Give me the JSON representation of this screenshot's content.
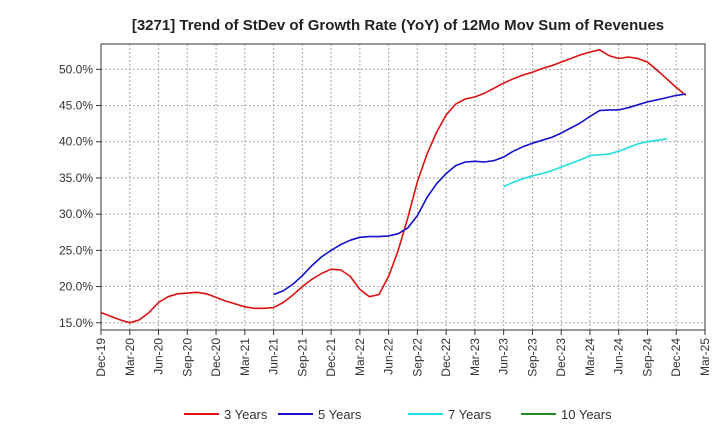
{
  "chart_data": {
    "type": "line",
    "title": "[3271]  Trend of StDev of Growth Rate (YoY) of 12Mo Mov Sum of Revenues",
    "xlabel": "",
    "ylabel": "",
    "ylim": [
      14.0,
      53.5
    ],
    "yticks": [
      15.0,
      20.0,
      25.0,
      30.0,
      35.0,
      40.0,
      45.0,
      50.0
    ],
    "ytick_labels": [
      "15.0%",
      "20.0%",
      "25.0%",
      "30.0%",
      "35.0%",
      "40.0%",
      "45.0%",
      "50.0%"
    ],
    "x_categories": [
      "Dec-19",
      "Mar-20",
      "Jun-20",
      "Sep-20",
      "Dec-20",
      "Mar-21",
      "Jun-21",
      "Sep-21",
      "Dec-21",
      "Mar-22",
      "Jun-22",
      "Sep-22",
      "Dec-22",
      "Mar-23",
      "Jun-23",
      "Sep-23",
      "Dec-23",
      "Mar-24",
      "Jun-24",
      "Sep-24",
      "Dec-24",
      "Mar-25"
    ],
    "grid": true,
    "legend_position": "bottom",
    "series": [
      {
        "name": "3 Years",
        "color": "#dd1111",
        "start_index": 0,
        "values": [
          16.4,
          15.9,
          15.4,
          15.0,
          15.4,
          16.4,
          17.8,
          18.6,
          19.0,
          19.1,
          19.2,
          19.0,
          18.5,
          18.0,
          17.6,
          17.2,
          17.0,
          17.0,
          17.1,
          17.8,
          18.8,
          20.0,
          21.0,
          21.8,
          22.4,
          22.3,
          21.4,
          19.6,
          18.6,
          18.9,
          21.4,
          25.0,
          29.5,
          34.5,
          38.3,
          41.3,
          43.7,
          45.2,
          45.9,
          46.2,
          46.7,
          47.4,
          48.1,
          48.7,
          49.2,
          49.6,
          50.1,
          50.5,
          51.0,
          51.5,
          52.0,
          52.4,
          52.7,
          51.9,
          51.5,
          51.7,
          51.5,
          51.0,
          49.9,
          48.7,
          47.5,
          46.4
        ]
      },
      {
        "name": "5 Years",
        "color": "#1111cc",
        "start_index": 18,
        "values": [
          18.9,
          19.4,
          20.3,
          21.5,
          22.9,
          24.1,
          25.0,
          25.8,
          26.4,
          26.8,
          26.9,
          26.9,
          27.0,
          27.3,
          28.1,
          29.8,
          32.3,
          34.2,
          35.6,
          36.7,
          37.2,
          37.3,
          37.2,
          37.4,
          37.9,
          38.7,
          39.3,
          39.8,
          40.2,
          40.6,
          41.2,
          41.9,
          42.6,
          43.5,
          44.3,
          44.4,
          44.4,
          44.7,
          45.1,
          45.5,
          45.8,
          46.1,
          46.4,
          46.6
        ]
      },
      {
        "name": "7 Years",
        "color": "#22dddd",
        "start_index": 42,
        "values": [
          33.8,
          34.4,
          34.9,
          35.3,
          35.6,
          36.0,
          36.5,
          37.0,
          37.5,
          38.1,
          38.2,
          38.3,
          38.7,
          39.2,
          39.7,
          40.0,
          40.2,
          40.4
        ]
      },
      {
        "name": "10 Years",
        "color": "#228822",
        "start_index": 0,
        "values": []
      }
    ]
  }
}
